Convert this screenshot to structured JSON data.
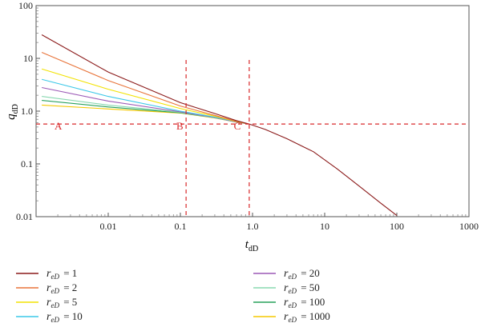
{
  "chart_data": {
    "type": "line",
    "x_scale": "log",
    "y_scale": "log",
    "xlim": [
      0.001,
      1000
    ],
    "ylim": [
      0.01,
      100
    ],
    "xlabel": {
      "main": "t",
      "sub": "dD"
    },
    "ylabel": {
      "main": "q",
      "sub": "dD"
    },
    "x_ticks": [
      {
        "value": 0.01,
        "label": "0.01"
      },
      {
        "value": 0.1,
        "label": "0.1"
      },
      {
        "value": 1,
        "label": "1.0"
      },
      {
        "value": 10,
        "label": "10"
      },
      {
        "value": 100,
        "label": "100"
      },
      {
        "value": 1000,
        "label": "1000"
      }
    ],
    "y_ticks": [
      {
        "value": 0.01,
        "label": "0.01"
      },
      {
        "value": 0.1,
        "label": "0.1"
      },
      {
        "value": 1,
        "label": "1.0"
      },
      {
        "value": 10,
        "label": "10"
      },
      {
        "value": 100,
        "label": "100"
      }
    ],
    "series": [
      {
        "name": "reD = 1",
        "color": "#8b1a1a",
        "x": [
          0.0012,
          0.01,
          0.1,
          0.3,
          0.6,
          0.9
        ],
        "y": [
          28,
          5.5,
          1.45,
          0.9,
          0.66,
          0.57
        ]
      },
      {
        "name": "reD = 2",
        "color": "#e8743a",
        "x": [
          0.0012,
          0.01,
          0.1,
          0.3,
          0.6,
          0.9
        ],
        "y": [
          13,
          3.8,
          1.25,
          0.83,
          0.64,
          0.57
        ]
      },
      {
        "name": "reD = 5",
        "color": "#f2e200",
        "x": [
          0.0012,
          0.01,
          0.1,
          0.3,
          0.6,
          0.9
        ],
        "y": [
          6.3,
          2.6,
          1.12,
          0.8,
          0.63,
          0.57
        ]
      },
      {
        "name": "reD = 10",
        "color": "#3cc8e8",
        "x": [
          0.0012,
          0.01,
          0.1,
          0.3,
          0.6,
          0.9
        ],
        "y": [
          4.0,
          1.9,
          1.0,
          0.77,
          0.63,
          0.57
        ]
      },
      {
        "name": "reD = 20",
        "color": "#9b59b6",
        "x": [
          0.0012,
          0.01,
          0.1,
          0.3,
          0.6,
          0.9
        ],
        "y": [
          2.8,
          1.55,
          0.97,
          0.76,
          0.62,
          0.57
        ]
      },
      {
        "name": "reD = 50",
        "color": "#88d8b0",
        "x": [
          0.0012,
          0.01,
          0.1,
          0.3,
          0.6,
          0.9
        ],
        "y": [
          1.9,
          1.3,
          0.95,
          0.75,
          0.62,
          0.57
        ]
      },
      {
        "name": "reD = 100",
        "color": "#27a05a",
        "x": [
          0.0012,
          0.01,
          0.1,
          0.3,
          0.6,
          0.9
        ],
        "y": [
          1.6,
          1.2,
          0.93,
          0.75,
          0.62,
          0.57
        ]
      },
      {
        "name": "reD = 1000",
        "color": "#f5c800",
        "x": [
          0.0012,
          0.01,
          0.1,
          0.3,
          0.6,
          0.9
        ],
        "y": [
          1.3,
          1.1,
          0.92,
          0.74,
          0.62,
          0.57
        ]
      }
    ],
    "decline": {
      "color": "#8b1a1a",
      "x": [
        0.9,
        1.5,
        3,
        7,
        15,
        30,
        60,
        100
      ],
      "y": [
        0.57,
        0.45,
        0.3,
        0.17,
        0.08,
        0.038,
        0.018,
        0.0105
      ]
    },
    "reference_lines": {
      "color": "#d9292b",
      "horizontal_y": 0.57,
      "vertical_x": [
        0.12,
        0.9
      ]
    },
    "annotations": [
      {
        "text": "A",
        "x": 0.0018,
        "y": 0.45
      },
      {
        "text": "B",
        "x": 0.088,
        "y": 0.45
      },
      {
        "text": "C",
        "x": 0.55,
        "y": 0.45
      }
    ],
    "legend": {
      "placement": "bottom",
      "columns": 2,
      "symbol": {
        "main": "r",
        "sub": "eD"
      },
      "entries": [
        {
          "value": "1",
          "color": "#8b1a1a"
        },
        {
          "value": "2",
          "color": "#e8743a"
        },
        {
          "value": "5",
          "color": "#f2e200"
        },
        {
          "value": "10",
          "color": "#3cc8e8"
        },
        {
          "value": "20",
          "color": "#9b59b6"
        },
        {
          "value": "50",
          "color": "#88d8b0"
        },
        {
          "value": "100",
          "color": "#27a05a"
        },
        {
          "value": "1000",
          "color": "#f5c800"
        }
      ]
    }
  }
}
